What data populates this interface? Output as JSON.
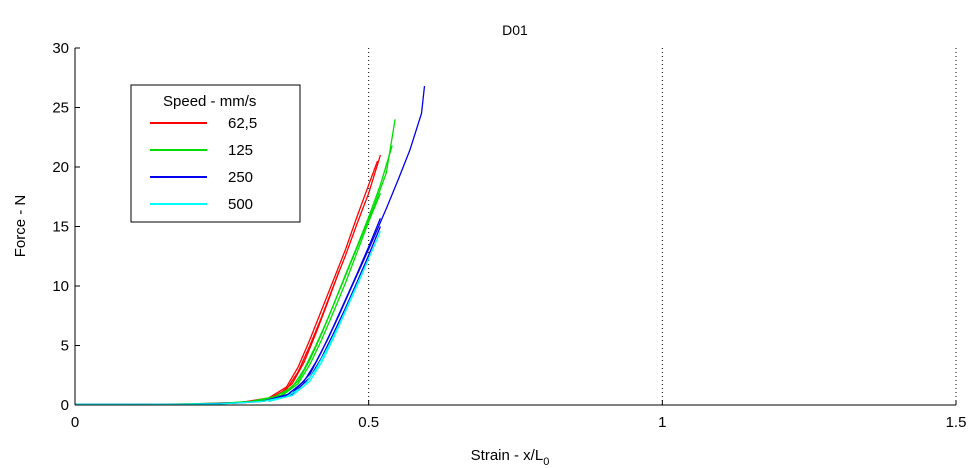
{
  "chart_data": {
    "type": "line",
    "title": "D01",
    "xlabel": "Strain - x/L",
    "xlabel_subscript": "0",
    "ylabel": "Force - N",
    "xlim": [
      0,
      1.5
    ],
    "ylim": [
      0,
      30
    ],
    "xticks": [
      0,
      0.5,
      1,
      1.5
    ],
    "xtick_labels": [
      "0",
      "0.5",
      "1",
      "1.5"
    ],
    "yticks": [
      0,
      5,
      10,
      15,
      20,
      25,
      30
    ],
    "ytick_labels": [
      "0",
      "5",
      "10",
      "15",
      "20",
      "25",
      "30"
    ],
    "vertical_gridlines": [
      0.5,
      1,
      1.5
    ],
    "legend": {
      "title": "Speed - mm/s",
      "placement": "top-left"
    },
    "series": [
      {
        "name": "62,5",
        "color": "#ff0000",
        "curves": [
          [
            [
              0,
              0.05
            ],
            [
              0.1,
              0.05
            ],
            [
              0.2,
              0.1
            ],
            [
              0.28,
              0.2
            ],
            [
              0.33,
              0.6
            ],
            [
              0.36,
              1.5
            ],
            [
              0.38,
              3.2
            ],
            [
              0.4,
              5.5
            ],
            [
              0.42,
              8.0
            ],
            [
              0.44,
              10.5
            ],
            [
              0.46,
              13.0
            ],
            [
              0.48,
              15.8
            ],
            [
              0.5,
              18.5
            ],
            [
              0.515,
              20.5
            ]
          ],
          [
            [
              0.28,
              0.2
            ],
            [
              0.33,
              0.5
            ],
            [
              0.36,
              1.3
            ],
            [
              0.38,
              2.8
            ],
            [
              0.4,
              5.0
            ],
            [
              0.42,
              7.4
            ],
            [
              0.44,
              10.0
            ],
            [
              0.46,
              12.5
            ],
            [
              0.48,
              15.2
            ],
            [
              0.5,
              17.8
            ],
            [
              0.52,
              21.0
            ]
          ],
          [
            [
              0.29,
              0.2
            ],
            [
              0.34,
              0.6
            ],
            [
              0.37,
              1.8
            ],
            [
              0.39,
              3.6
            ],
            [
              0.41,
              6.0
            ],
            [
              0.43,
              8.6
            ],
            [
              0.45,
              11.3
            ]
          ]
        ]
      },
      {
        "name": "125",
        "color": "#00dd00",
        "curves": [
          [
            [
              0,
              0.05
            ],
            [
              0.15,
              0.05
            ],
            [
              0.25,
              0.15
            ],
            [
              0.3,
              0.3
            ],
            [
              0.34,
              0.7
            ],
            [
              0.37,
              1.5
            ],
            [
              0.39,
              3.0
            ],
            [
              0.41,
              5.0
            ],
            [
              0.43,
              7.2
            ],
            [
              0.45,
              9.6
            ],
            [
              0.47,
              12.0
            ],
            [
              0.49,
              14.4
            ],
            [
              0.51,
              16.8
            ],
            [
              0.53,
              19.5
            ],
            [
              0.545,
              24.0
            ]
          ],
          [
            [
              0.3,
              0.3
            ],
            [
              0.35,
              0.8
            ],
            [
              0.38,
              2.0
            ],
            [
              0.4,
              3.8
            ],
            [
              0.42,
              6.0
            ],
            [
              0.44,
              8.4
            ],
            [
              0.46,
              10.9
            ],
            [
              0.48,
              13.3
            ],
            [
              0.5,
              15.8
            ],
            [
              0.52,
              18.5
            ],
            [
              0.54,
              21.8
            ]
          ],
          [
            [
              0.31,
              0.3
            ],
            [
              0.35,
              0.7
            ],
            [
              0.38,
              1.8
            ],
            [
              0.4,
              3.4
            ],
            [
              0.42,
              5.5
            ],
            [
              0.44,
              7.8
            ],
            [
              0.46,
              10.2
            ],
            [
              0.48,
              12.8
            ],
            [
              0.5,
              15.4
            ],
            [
              0.52,
              17.8
            ]
          ]
        ]
      },
      {
        "name": "250",
        "color": "#0000ee",
        "curves": [
          [
            [
              0,
              0.05
            ],
            [
              0.18,
              0.05
            ],
            [
              0.27,
              0.15
            ],
            [
              0.32,
              0.3
            ],
            [
              0.36,
              0.8
            ],
            [
              0.39,
              2.0
            ],
            [
              0.41,
              3.6
            ],
            [
              0.43,
              5.5
            ],
            [
              0.45,
              7.6
            ],
            [
              0.47,
              9.8
            ],
            [
              0.49,
              12.0
            ],
            [
              0.51,
              14.2
            ],
            [
              0.53,
              16.5
            ],
            [
              0.55,
              18.9
            ],
            [
              0.57,
              21.4
            ],
            [
              0.59,
              24.5
            ],
            [
              0.595,
              26.8
            ]
          ],
          [
            [
              0.32,
              0.3
            ],
            [
              0.37,
              1.0
            ],
            [
              0.4,
              2.6
            ],
            [
              0.42,
              4.5
            ],
            [
              0.44,
              6.6
            ],
            [
              0.46,
              8.8
            ],
            [
              0.48,
              11.0
            ],
            [
              0.5,
              13.3
            ],
            [
              0.52,
              15.7
            ]
          ],
          [
            [
              0.33,
              0.3
            ],
            [
              0.37,
              0.9
            ],
            [
              0.4,
              2.3
            ],
            [
              0.42,
              4.0
            ],
            [
              0.44,
              6.0
            ],
            [
              0.46,
              8.1
            ],
            [
              0.48,
              10.3
            ],
            [
              0.5,
              12.6
            ],
            [
              0.52,
              15.0
            ]
          ]
        ]
      },
      {
        "name": "500",
        "color": "#00ffff",
        "curves": [
          [
            [
              0,
              0.05
            ],
            [
              0.12,
              0.05
            ],
            [
              0.25,
              0.1
            ],
            [
              0.32,
              0.3
            ],
            [
              0.36,
              0.7
            ],
            [
              0.39,
              1.6
            ],
            [
              0.41,
              3.0
            ],
            [
              0.43,
              4.8
            ],
            [
              0.45,
              6.8
            ],
            [
              0.47,
              9.0
            ],
            [
              0.49,
              11.2
            ],
            [
              0.51,
              13.4
            ],
            [
              0.52,
              14.6
            ]
          ],
          [
            [
              0.33,
              0.3
            ],
            [
              0.37,
              0.8
            ],
            [
              0.4,
              2.0
            ],
            [
              0.42,
              3.6
            ],
            [
              0.44,
              5.6
            ],
            [
              0.46,
              7.8
            ],
            [
              0.48,
              10.0
            ],
            [
              0.5,
              12.3
            ]
          ]
        ]
      }
    ]
  }
}
